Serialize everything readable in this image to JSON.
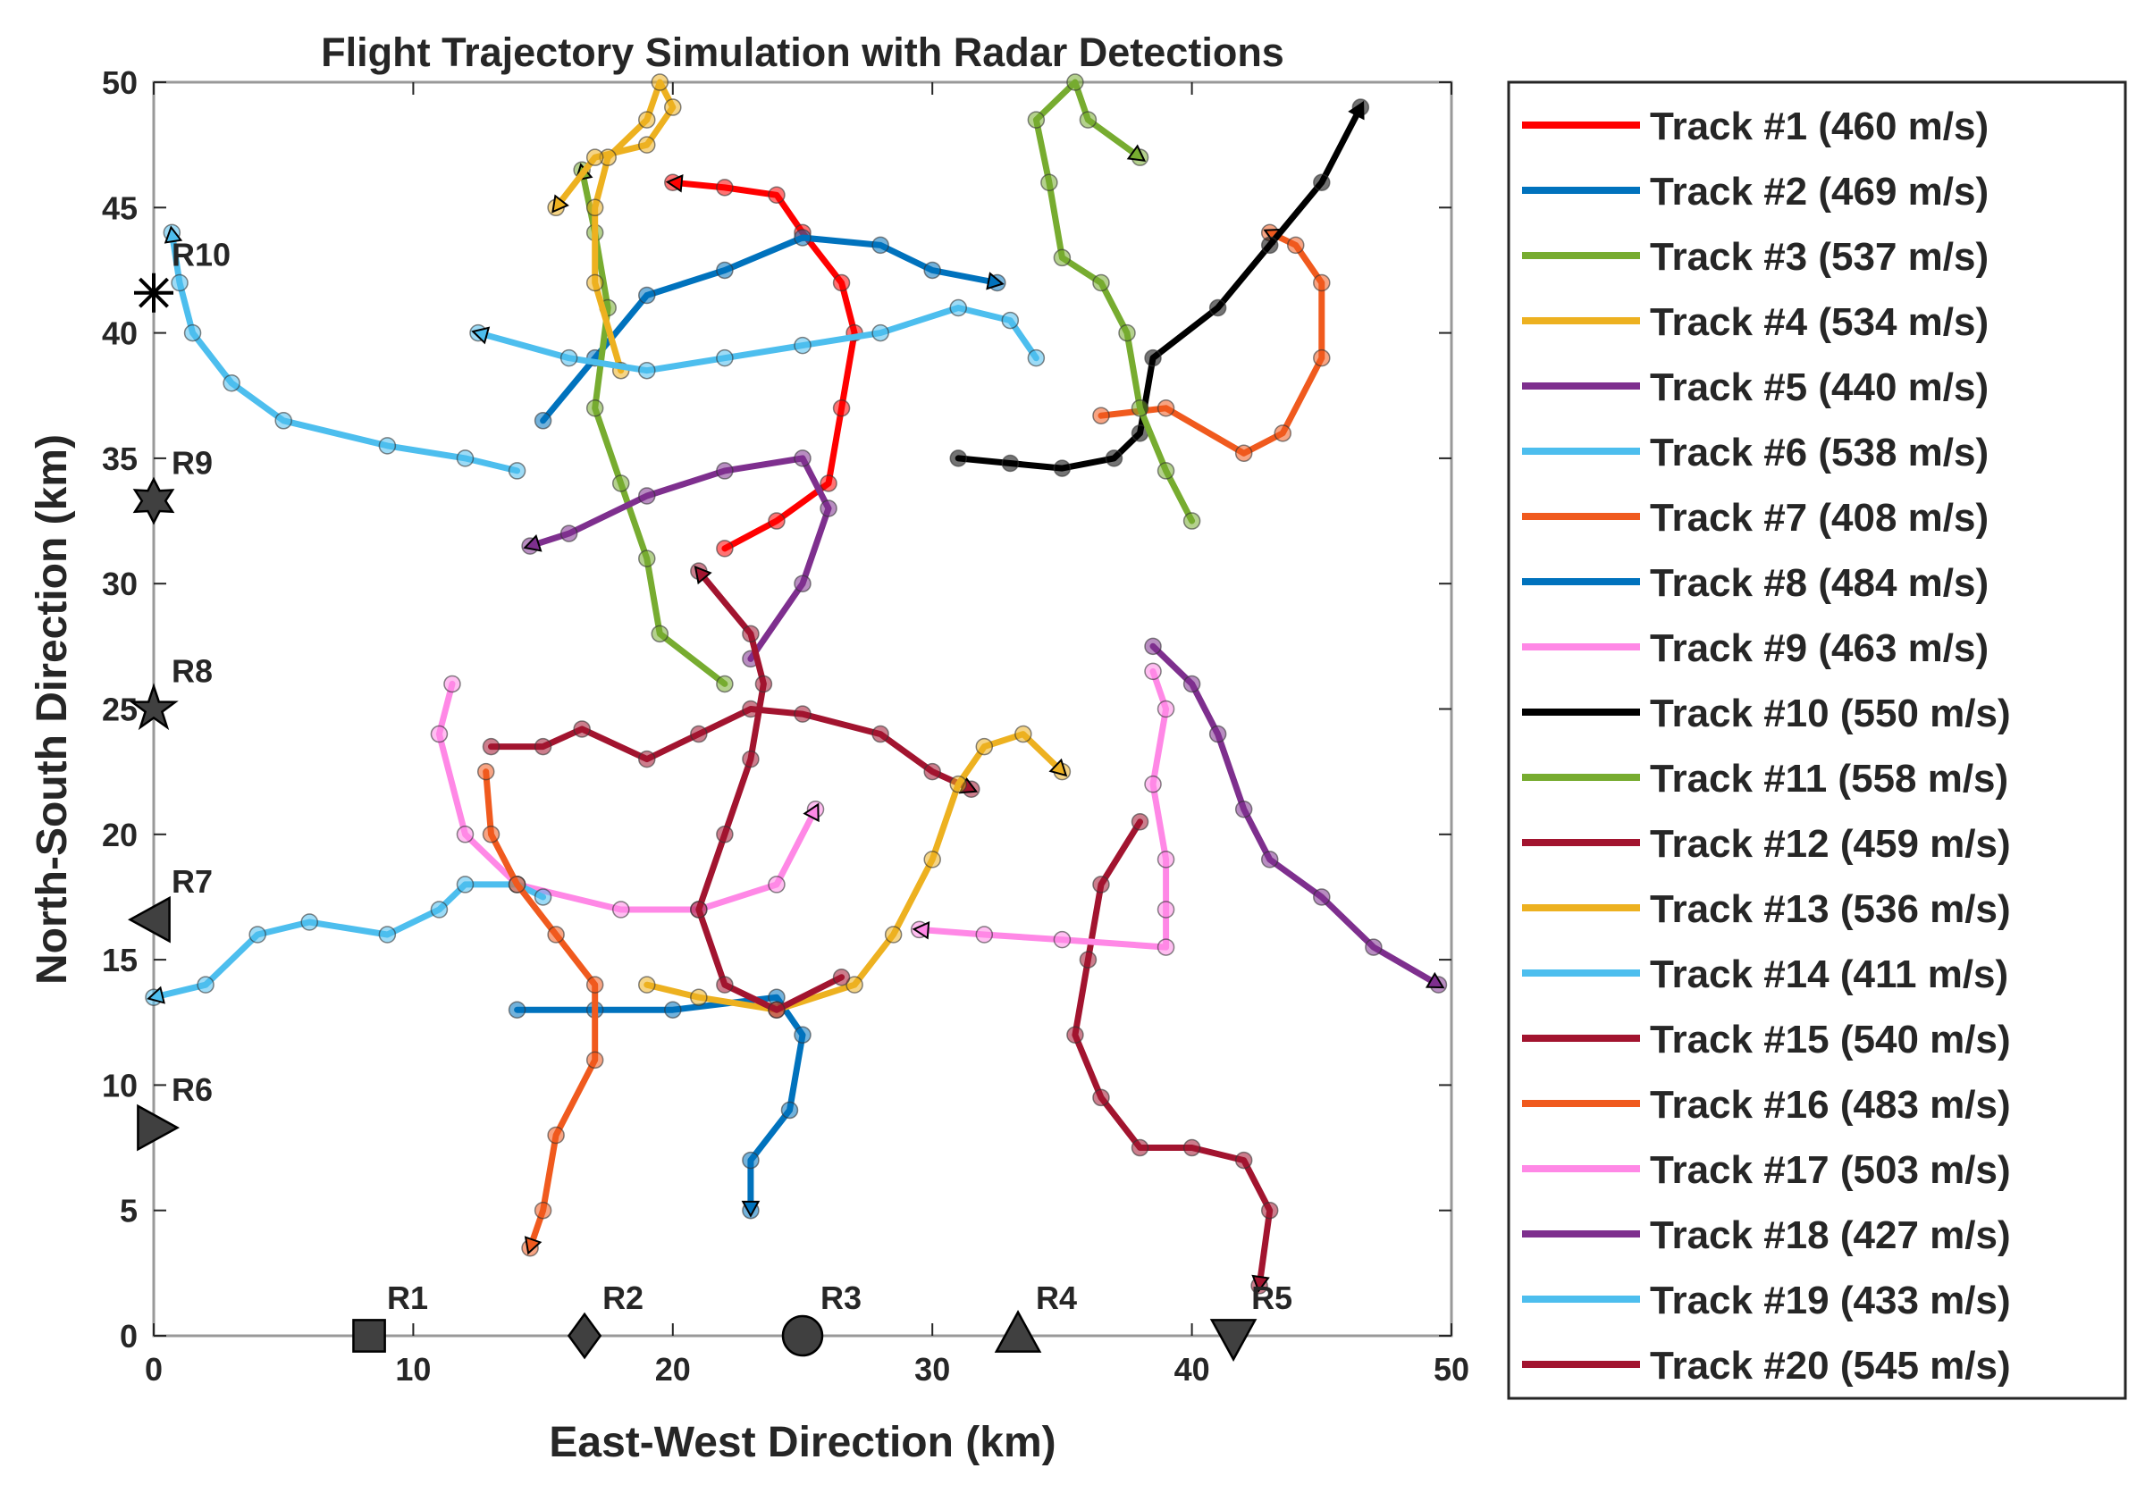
{
  "chart_data": {
    "type": "line",
    "title": "Flight Trajectory Simulation with Radar Detections",
    "xlabel": "East-West Direction (km)",
    "ylabel": "North-South Direction (km)",
    "xlim": [
      0,
      50
    ],
    "ylim": [
      0,
      50
    ],
    "xticks": [
      0,
      10,
      20,
      30,
      40,
      50
    ],
    "yticks": [
      0,
      5,
      10,
      15,
      20,
      25,
      30,
      35,
      40,
      45,
      50
    ],
    "series": [
      {
        "name": "Track #1 (460 m/s)",
        "color": "#ff0000",
        "x": [
          22,
          24,
          26,
          26.5,
          27,
          26.5,
          25,
          24,
          22,
          20
        ],
        "y": [
          31.4,
          32.5,
          34,
          37,
          40,
          42,
          44,
          45.5,
          45.8,
          46
        ]
      },
      {
        "name": "Track #2 (469 m/s)",
        "color": "#0072bd",
        "x": [
          15,
          17,
          19,
          22,
          25,
          28,
          30,
          32.5
        ],
        "y": [
          36.5,
          39,
          41.5,
          42.5,
          43.8,
          43.5,
          42.5,
          42
        ]
      },
      {
        "name": "Track #3 (537 m/s)",
        "color": "#77ac30",
        "x": [
          22,
          19.5,
          19,
          18,
          17,
          17.5,
          17,
          16.5
        ],
        "y": [
          26,
          28,
          31,
          34,
          37,
          41,
          44,
          46.5
        ]
      },
      {
        "name": "Track #4 (534 m/s)",
        "color": "#edb120",
        "x": [
          18,
          17,
          17,
          17.5,
          19,
          19.5,
          20,
          19,
          17,
          15.5
        ],
        "y": [
          38.5,
          42,
          45,
          47,
          48.5,
          50,
          49,
          47.5,
          47,
          45
        ]
      },
      {
        "name": "Track #5 (440 m/s)",
        "color": "#7e2f8e",
        "x": [
          23,
          25,
          26,
          25,
          22,
          19,
          16,
          14.5
        ],
        "y": [
          27,
          30,
          33,
          35,
          34.5,
          33.5,
          32,
          31.5
        ]
      },
      {
        "name": "Track #6 (538 m/s)",
        "color": "#4dbeee",
        "x": [
          34,
          33,
          31,
          28,
          25,
          22,
          19,
          16,
          12.5
        ],
        "y": [
          39,
          40.5,
          41,
          40,
          39.5,
          39,
          38.5,
          39,
          40
        ]
      },
      {
        "name": "Track #7 (408 m/s)",
        "color": "#f05a1e",
        "x": [
          36.5,
          39,
          42,
          43.5,
          45,
          45,
          44,
          43
        ],
        "y": [
          36.7,
          37,
          35.2,
          36,
          39,
          42,
          43.5,
          44
        ]
      },
      {
        "name": "Track #8 (484 m/s)",
        "color": "#0072bd",
        "x": [
          14,
          17,
          20,
          24,
          25,
          24.5,
          23,
          23
        ],
        "y": [
          13,
          13,
          13,
          13.5,
          12,
          9,
          7,
          5
        ]
      },
      {
        "name": "Track #9 (463 m/s)",
        "color": "#ff88e6",
        "x": [
          11.5,
          11,
          12,
          14,
          18,
          21,
          24,
          25.5
        ],
        "y": [
          26,
          24,
          20,
          18,
          17,
          17,
          18,
          21
        ]
      },
      {
        "name": "Track #10 (550 m/s)",
        "color": "#000000",
        "x": [
          31,
          33,
          35,
          37,
          38,
          38.5,
          41,
          43,
          45,
          46.5
        ],
        "y": [
          35,
          34.8,
          34.6,
          35,
          36,
          39,
          41,
          43.5,
          46,
          49
        ]
      },
      {
        "name": "Track #11 (558 m/s)",
        "color": "#77ac30",
        "x": [
          40,
          39,
          38,
          37.5,
          36.5,
          35,
          34.5,
          34,
          35.5,
          36,
          38
        ],
        "y": [
          32.5,
          34.5,
          37,
          40,
          42,
          43,
          46,
          48.5,
          50,
          48.5,
          47
        ]
      },
      {
        "name": "Track #12 (459 m/s)",
        "color": "#a2142f",
        "x": [
          13,
          15,
          16.5,
          19,
          21,
          23,
          25,
          28,
          30,
          31.5
        ],
        "y": [
          23.5,
          23.5,
          24.2,
          23,
          24,
          25,
          24.8,
          24,
          22.5,
          21.8
        ]
      },
      {
        "name": "Track #13 (536 m/s)",
        "color": "#edb120",
        "x": [
          19,
          21,
          24,
          27,
          28.5,
          30,
          31,
          32,
          33.5,
          35
        ],
        "y": [
          14,
          13.5,
          13,
          14,
          16,
          19,
          22,
          23.5,
          24,
          22.5
        ]
      },
      {
        "name": "Track #14 (411 m/s)",
        "color": "#4dbeee",
        "x": [
          15,
          14,
          12,
          11,
          9,
          6,
          4,
          2,
          0
        ],
        "y": [
          17.5,
          18,
          18,
          17,
          16,
          16.5,
          16,
          14,
          13.5
        ]
      },
      {
        "name": "Track #15 (540 m/s)",
        "color": "#a2142f",
        "x": [
          38,
          36.5,
          36,
          35.5,
          36.5,
          38,
          40,
          42,
          43,
          42.6
        ],
        "y": [
          20.5,
          18,
          15,
          12,
          9.5,
          7.5,
          7.5,
          7,
          5,
          2
        ]
      },
      {
        "name": "Track #16 (483 m/s)",
        "color": "#f05a1e",
        "x": [
          12.8,
          13,
          14,
          15.5,
          17,
          17,
          15.5,
          15,
          14.5
        ],
        "y": [
          22.5,
          20,
          18,
          16,
          14,
          11,
          8,
          5,
          3.5
        ]
      },
      {
        "name": "Track #17 (503 m/s)",
        "color": "#ff88e6",
        "x": [
          38.5,
          39,
          38.5,
          39,
          39,
          39,
          35,
          32,
          29.5
        ],
        "y": [
          26.5,
          25,
          22,
          19,
          17,
          15.5,
          15.8,
          16,
          16.2
        ]
      },
      {
        "name": "Track #18 (427 m/s)",
        "color": "#7e2f8e",
        "x": [
          38.5,
          40,
          41,
          42,
          43,
          45,
          47,
          49.5
        ],
        "y": [
          27.5,
          26,
          24,
          21,
          19,
          17.5,
          15.5,
          14
        ]
      },
      {
        "name": "Track #19 (433 m/s)",
        "color": "#4dbeee",
        "x": [
          14,
          12,
          9,
          5,
          3,
          1.5,
          1,
          0.7
        ],
        "y": [
          34.5,
          35,
          35.5,
          36.5,
          38,
          40,
          42,
          44
        ]
      },
      {
        "name": "Track #20 (545 m/s)",
        "color": "#a2142f",
        "x": [
          26.5,
          24,
          22,
          21,
          22,
          23,
          23.5,
          23,
          21
        ],
        "y": [
          14.3,
          13,
          14,
          17,
          20,
          23,
          26,
          28,
          30.5
        ]
      }
    ],
    "radars": [
      {
        "label": "R1",
        "marker": "square",
        "x": 8.3,
        "y": 0
      },
      {
        "label": "R2",
        "marker": "diamond",
        "x": 16.6,
        "y": 0
      },
      {
        "label": "R3",
        "marker": "circle",
        "x": 25,
        "y": 0
      },
      {
        "label": "R4",
        "marker": "triangle-up",
        "x": 33.3,
        "y": 0
      },
      {
        "label": "R5",
        "marker": "triangle-down",
        "x": 41.6,
        "y": 0
      },
      {
        "label": "R6",
        "marker": "triangle-right",
        "x": 0,
        "y": 8.3
      },
      {
        "label": "R7",
        "marker": "triangle-left",
        "x": 0,
        "y": 16.6
      },
      {
        "label": "R8",
        "marker": "pentagram",
        "x": 0,
        "y": 25
      },
      {
        "label": "R9",
        "marker": "hexagram",
        "x": 0,
        "y": 33.3
      },
      {
        "label": "R10",
        "marker": "asterisk",
        "x": 0,
        "y": 41.6
      }
    ]
  }
}
